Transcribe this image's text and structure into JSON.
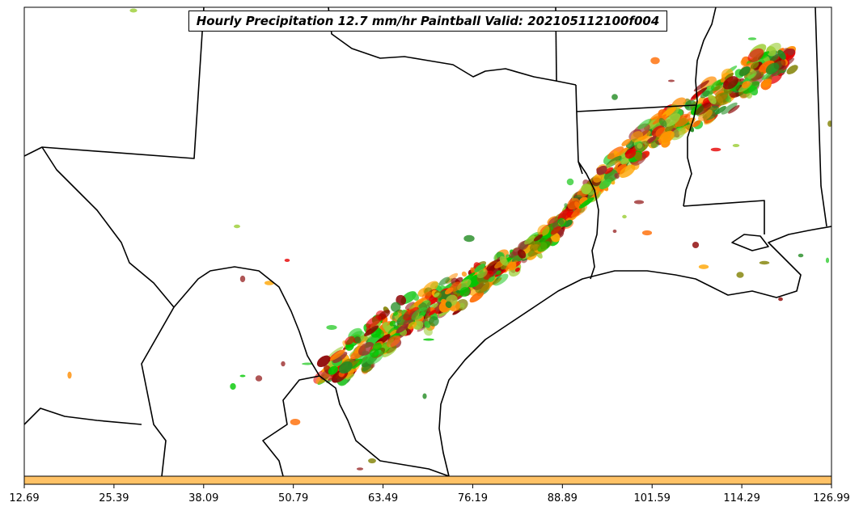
{
  "chart_data": {
    "type": "map",
    "title": "Hourly Precipitation 12.7 mm/hr Paintball Valid: 202105112100f004",
    "colorbar": {
      "range": [
        12.69,
        126.99
      ],
      "ticks": [
        "12.69",
        "25.39",
        "38.09",
        "50.79",
        "63.49",
        "76.19",
        "88.89",
        "101.59",
        "114.29",
        "126.99"
      ],
      "fill_color": "#ffc266"
    },
    "member_colors": [
      "#ff8c00",
      "#ffa500",
      "#e60000",
      "#8b0000",
      "#9b2c2c",
      "#228b22",
      "#32cd32",
      "#00c800",
      "#9acd32",
      "#808000",
      "#ff6a00"
    ]
  }
}
